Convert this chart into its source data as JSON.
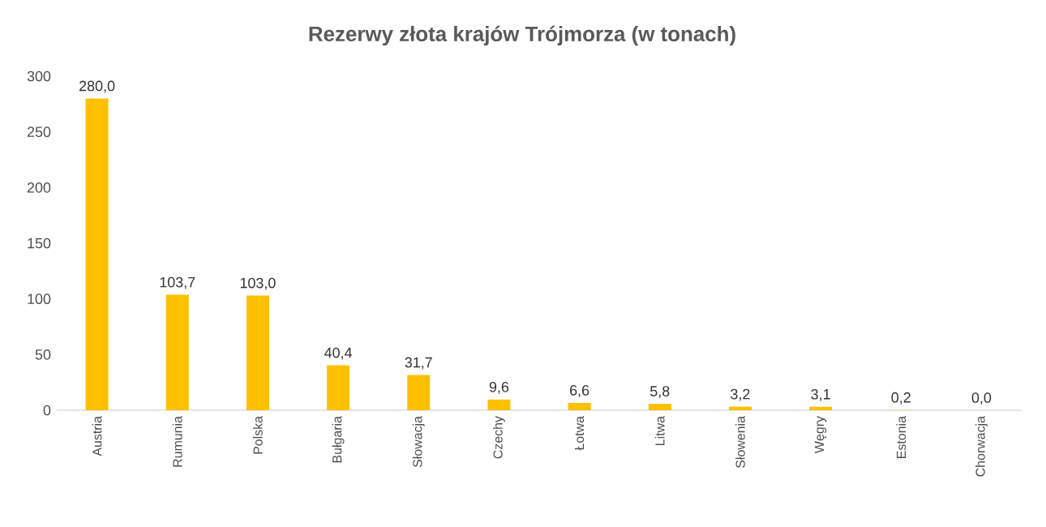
{
  "chart_data": {
    "type": "bar",
    "title": "Rezerwy złota krajów Trójmorza (w tonach)",
    "categories": [
      "Austria",
      "Rumunia",
      "Polska",
      "Bułgaria",
      "Słowacja",
      "Czechy",
      "Łotwa",
      "Litwa",
      "Słowenia",
      "Węgry",
      "Estonia",
      "Chorwacja"
    ],
    "values": [
      280.0,
      103.7,
      103.0,
      40.4,
      31.7,
      9.6,
      6.6,
      5.8,
      3.2,
      3.1,
      0.2,
      0.0
    ],
    "value_labels": [
      "280,0",
      "103,7",
      "103,0",
      "40,4",
      "31,7",
      "9,6",
      "6,6",
      "5,8",
      "3,2",
      "3,1",
      "0,2",
      "0,0"
    ],
    "color": "#ffc000",
    "ylim": [
      0,
      300
    ],
    "yticks": [
      0,
      50,
      100,
      150,
      200,
      250,
      300
    ],
    "grid": false
  }
}
